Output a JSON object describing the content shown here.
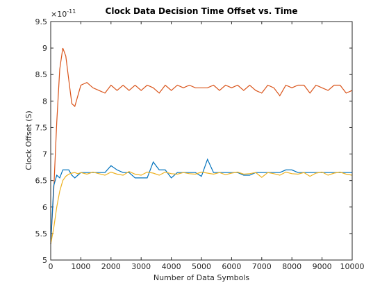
{
  "chart_data": {
    "type": "line",
    "title": "Clock Data Decision Time Offset vs. Time",
    "xlabel": "Number of Data Symbols",
    "ylabel": "Clock Offset (S)",
    "exponent_label": {
      "base": "×10",
      "power": "-11"
    },
    "x": [
      0,
      100,
      200,
      300,
      400,
      500,
      600,
      700,
      800,
      900,
      1000,
      1200,
      1400,
      1600,
      1800,
      2000,
      2200,
      2400,
      2600,
      2800,
      3000,
      3200,
      3400,
      3600,
      3800,
      4000,
      4200,
      4400,
      4600,
      4800,
      5000,
      5200,
      5400,
      5600,
      5800,
      6000,
      6200,
      6400,
      6600,
      6800,
      7000,
      7200,
      7400,
      7600,
      7800,
      8000,
      8200,
      8400,
      8600,
      8800,
      9000,
      9200,
      9400,
      9600,
      9800,
      10000
    ],
    "series": [
      {
        "color": "#d95319",
        "values": [
          5.3,
          6.3,
          7.6,
          8.6,
          9.0,
          8.85,
          8.4,
          7.95,
          7.9,
          8.1,
          8.3,
          8.35,
          8.25,
          8.2,
          8.15,
          8.3,
          8.2,
          8.3,
          8.2,
          8.3,
          8.2,
          8.3,
          8.25,
          8.15,
          8.3,
          8.2,
          8.3,
          8.25,
          8.3,
          8.25,
          8.25,
          8.25,
          8.3,
          8.2,
          8.3,
          8.25,
          8.3,
          8.2,
          8.3,
          8.2,
          8.15,
          8.3,
          8.25,
          8.1,
          8.3,
          8.25,
          8.3,
          8.3,
          8.15,
          8.3,
          8.25,
          8.2,
          8.3,
          8.3,
          8.15,
          8.2
        ]
      },
      {
        "color": "#0072bd",
        "values": [
          5.3,
          6.4,
          6.6,
          6.55,
          6.7,
          6.7,
          6.7,
          6.6,
          6.55,
          6.6,
          6.65,
          6.65,
          6.65,
          6.65,
          6.65,
          6.78,
          6.7,
          6.65,
          6.65,
          6.55,
          6.55,
          6.55,
          6.85,
          6.7,
          6.7,
          6.55,
          6.65,
          6.65,
          6.65,
          6.65,
          6.58,
          6.9,
          6.65,
          6.65,
          6.65,
          6.65,
          6.65,
          6.6,
          6.6,
          6.65,
          6.65,
          6.65,
          6.65,
          6.65,
          6.7,
          6.7,
          6.65,
          6.65,
          6.65,
          6.65,
          6.65,
          6.65,
          6.65,
          6.65,
          6.65,
          6.65
        ]
      },
      {
        "color": "#edb120",
        "values": [
          5.3,
          5.6,
          6.0,
          6.3,
          6.5,
          6.58,
          6.62,
          6.64,
          6.65,
          6.63,
          6.65,
          6.62,
          6.66,
          6.63,
          6.6,
          6.66,
          6.62,
          6.6,
          6.67,
          6.62,
          6.6,
          6.66,
          6.64,
          6.6,
          6.66,
          6.63,
          6.62,
          6.65,
          6.63,
          6.62,
          6.66,
          6.64,
          6.62,
          6.65,
          6.61,
          6.64,
          6.66,
          6.62,
          6.63,
          6.65,
          6.56,
          6.65,
          6.63,
          6.6,
          6.66,
          6.63,
          6.62,
          6.65,
          6.58,
          6.64,
          6.66,
          6.6,
          6.64,
          6.66,
          6.62,
          6.6
        ]
      }
    ],
    "xlim": [
      0,
      10000
    ],
    "xticks": [
      0,
      1000,
      2000,
      3000,
      4000,
      5000,
      6000,
      7000,
      8000,
      9000,
      10000
    ],
    "ylim": [
      5,
      9.5
    ],
    "yticks": [
      5,
      5.5,
      6,
      6.5,
      7,
      7.5,
      8,
      8.5,
      9,
      9.5
    ]
  }
}
